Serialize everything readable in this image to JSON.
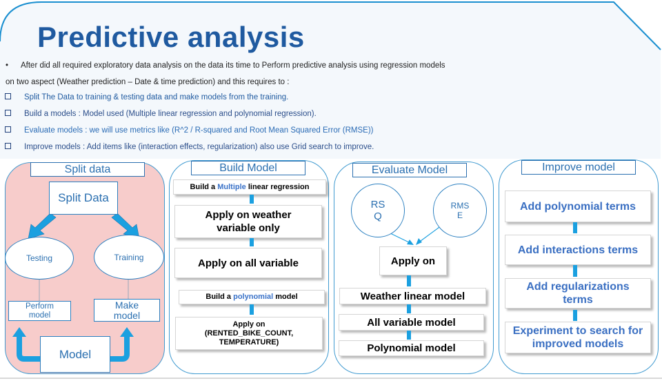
{
  "title": "Predictive analysis",
  "intro": {
    "bullet": "•",
    "line1": "After did all required exploratory data analysis on the data its time to Perform predictive analysis using regression models",
    "line2": "on two aspect (Weather prediction – Date & time prediction) and this requires to  :"
  },
  "steps": [
    "Split  The Data to training & testing data and make models from the training.",
    "Build a models : Model used (Multiple linear regression and polynomial regression).",
    "Evaluate models : we will use metrics like (R^2 / R-squared and Root Mean Squared Error (RMSE))",
    "Improve models : Add items like (interaction effects, regularization) also use Grid search to improve."
  ],
  "split_panel": {
    "title": "Split data",
    "split_box": "Split Data",
    "testing": "Testing",
    "training": "Training",
    "perform_line1": "Perform",
    "perform_line2": "model",
    "make_line1": "Make",
    "make_line2": "model",
    "model": "Model"
  },
  "build_panel": {
    "title": "Build Model",
    "mlr_pre": "Build a ",
    "mlr_hl": "Multiple",
    "mlr_post": " linear regression",
    "weather_line1": "Apply on weather",
    "weather_line2": "variable only",
    "all": "Apply on all variable",
    "poly_pre": "Build a ",
    "poly_hl": "polynomial",
    "poly_post": " model",
    "apply_line1": "Apply on",
    "apply_line2": "(RENTED_BIKE_COUNT,",
    "apply_line3": "TEMPERATURE)"
  },
  "eval_panel": {
    "title": "Evaluate Model",
    "rsq_line1": "RS",
    "rsq_line2": "Q",
    "rmse_line1": "RMS",
    "rmse_line2": "E",
    "apply_on": "Apply on",
    "models": [
      "Weather linear model",
      "All variable model",
      "Polynomial model"
    ]
  },
  "improve_panel": {
    "title": "Improve model",
    "items": [
      {
        "line1": "Add polynomial terms",
        "line2": ""
      },
      {
        "line1": "Add interactions terms",
        "line2": ""
      },
      {
        "line1": "Add regularizations",
        "line2": "terms"
      },
      {
        "line1": "Experiment to search for",
        "line2": "improved models"
      }
    ]
  },
  "colors": {
    "title": "#1f5aa0",
    "accent_blue": "#1ba0e0",
    "split_panel_bg": "#f7cccb",
    "header_bg": "#f4f8fc"
  }
}
